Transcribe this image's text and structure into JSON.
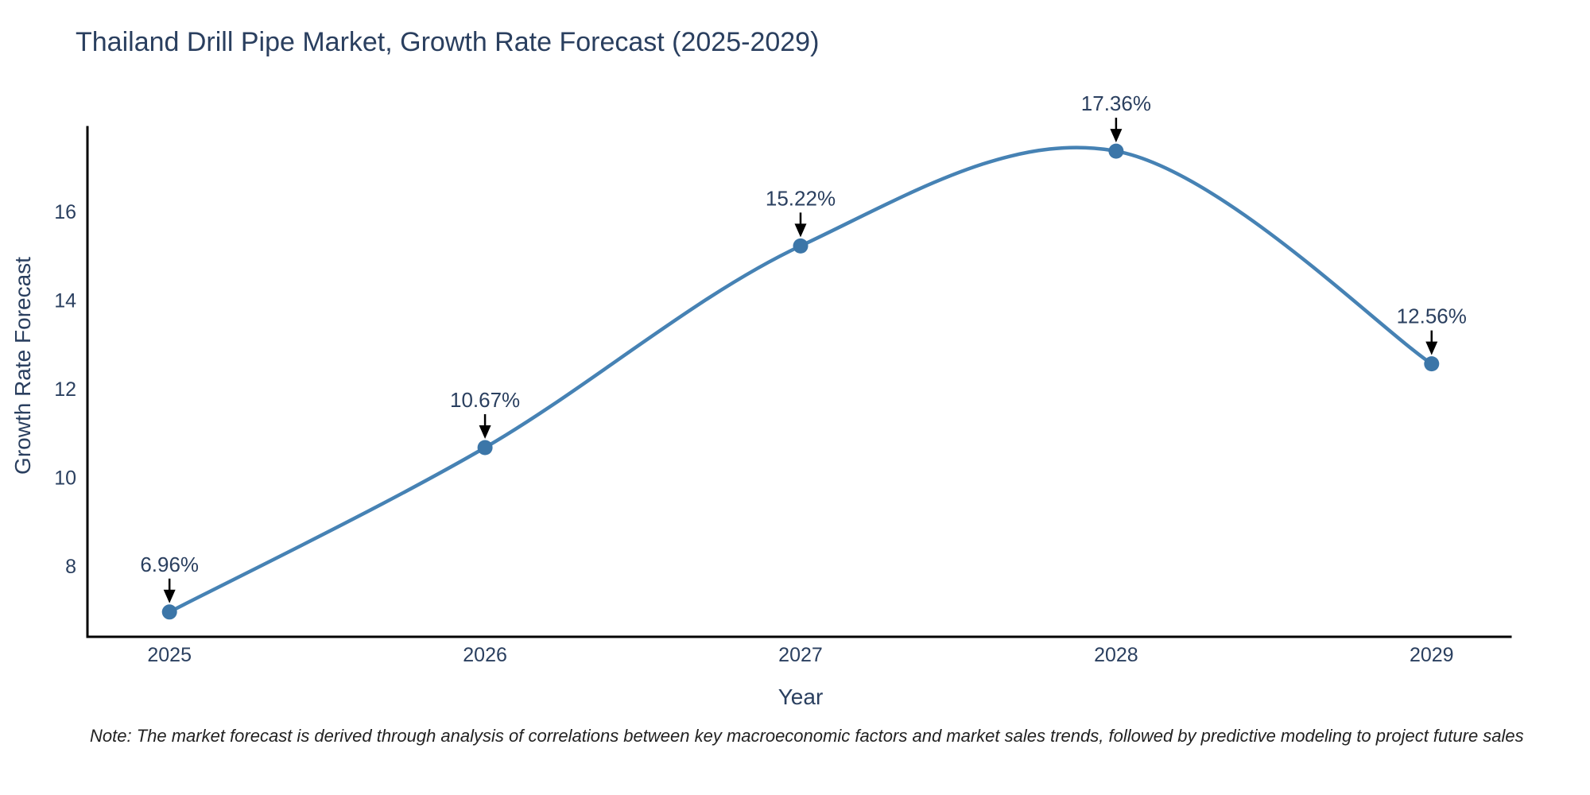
{
  "title": "Thailand Drill Pipe Market, Growth Rate Forecast (2025-2029)",
  "note": "Note: The market forecast is derived through analysis of correlations between key macroeconomic factors and market sales trends, followed by predictive modeling to project future sales",
  "colors": {
    "background": "#ffffff",
    "title_text": "#2a3f5f",
    "tick_text": "#2a3f5f",
    "axis_line": "#000000",
    "series_line": "#4682b4",
    "marker_fill": "#3c76a8",
    "annotation_text": "#2a3f5f",
    "annotation_arrow": "#000000",
    "note_text": "#222222"
  },
  "chart_data": {
    "type": "line",
    "title": "Thailand Drill Pipe Market, Growth Rate Forecast (2025-2029)",
    "xlabel": "Year",
    "ylabel": "Growth Rate Forecast",
    "x": [
      2025,
      2026,
      2027,
      2028,
      2029
    ],
    "y": [
      6.96,
      10.67,
      15.22,
      17.36,
      12.56
    ],
    "point_labels": [
      "6.96%",
      "10.67%",
      "15.22%",
      "17.36%",
      "12.56%"
    ],
    "xticks": [
      2025,
      2026,
      2027,
      2028,
      2029
    ],
    "yticks": [
      8,
      10,
      12,
      14,
      16
    ],
    "xlim": [
      2024.74,
      2029.25
    ],
    "ylim": [
      6.4,
      17.9
    ],
    "line_shape": "spline",
    "grid": false,
    "legend": false,
    "markers": true
  }
}
